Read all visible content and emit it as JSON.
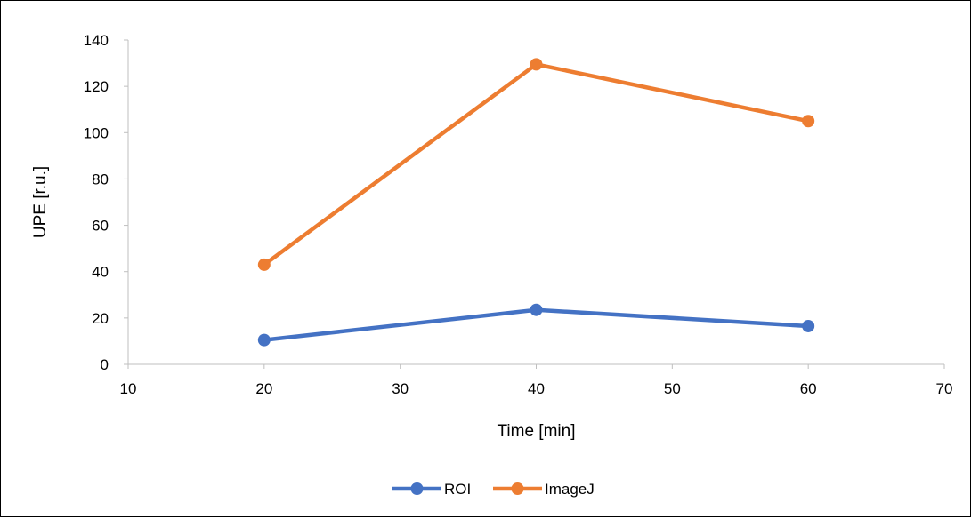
{
  "chart_data": {
    "type": "line",
    "title": "",
    "xlabel": "Time [min]",
    "ylabel": "UPE [r.u.]",
    "xlim": [
      10,
      70
    ],
    "ylim": [
      0,
      140
    ],
    "xticks": [
      10,
      20,
      30,
      40,
      50,
      60,
      70
    ],
    "yticks": [
      0,
      20,
      40,
      60,
      80,
      100,
      120,
      140
    ],
    "grid": false,
    "legend_position": "bottom",
    "series": [
      {
        "name": "ROI",
        "color": "#4472C4",
        "x": [
          20,
          40,
          60
        ],
        "y": [
          10.5,
          23.5,
          16.5
        ]
      },
      {
        "name": "ImageJ",
        "color": "#ED7D31",
        "x": [
          20,
          40,
          60
        ],
        "y": [
          43,
          129.5,
          105
        ]
      }
    ]
  }
}
